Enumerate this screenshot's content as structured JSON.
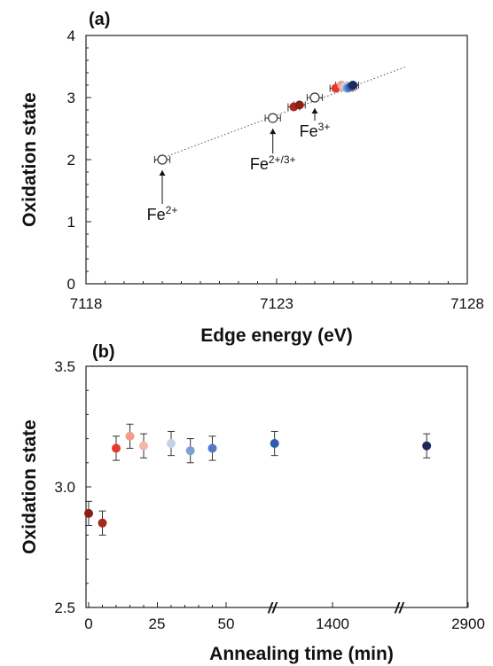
{
  "chart_data": [
    {
      "panel": "(a)",
      "type": "scatter",
      "xlabel": "Edge energy (eV)",
      "ylabel": "Oxidation state",
      "xlim": [
        7118,
        7128
      ],
      "ylim": [
        0,
        4
      ],
      "xticks": [
        "7118",
        "7123",
        "7128"
      ],
      "yticks": [
        "0",
        "1",
        "2",
        "3",
        "4"
      ],
      "grid": false,
      "fit_line": {
        "style": "dotted",
        "x": [
          7119.8,
          7126.4
        ],
        "y": [
          1.98,
          3.5
        ]
      },
      "references": [
        {
          "label_base": "Fe",
          "label_sup": "2+",
          "x": 7120.0,
          "y": 2.0,
          "xerr": 0.2
        },
        {
          "label_base": "Fe",
          "label_sup": "2+/3+",
          "x": 7122.9,
          "y": 2.67,
          "xerr": 0.2
        },
        {
          "label_base": "Fe",
          "label_sup": "3+",
          "x": 7124.0,
          "y": 3.0,
          "xerr": 0.2
        }
      ],
      "samples": [
        {
          "x": 7123.45,
          "y": 2.85,
          "color": "#a32a1e",
          "xerr": 0.15
        },
        {
          "x": 7123.6,
          "y": 2.88,
          "color": "#8c1e14",
          "xerr": 0.15
        },
        {
          "x": 7124.55,
          "y": 3.15,
          "color": "#e8382a",
          "xerr": 0.15
        },
        {
          "x": 7124.7,
          "y": 3.2,
          "color": "#f39a8a",
          "xerr": 0.15
        },
        {
          "x": 7124.75,
          "y": 3.17,
          "color": "#f2b7a8",
          "xerr": 0.15
        },
        {
          "x": 7124.8,
          "y": 3.18,
          "color": "#c4d0e8",
          "xerr": 0.15
        },
        {
          "x": 7124.85,
          "y": 3.15,
          "color": "#7f9ed4",
          "xerr": 0.15
        },
        {
          "x": 7124.9,
          "y": 3.16,
          "color": "#5577c4",
          "xerr": 0.15
        },
        {
          "x": 7124.95,
          "y": 3.18,
          "color": "#2f5cb0",
          "xerr": 0.15
        },
        {
          "x": 7125.0,
          "y": 3.2,
          "color": "#1a2a5c",
          "xerr": 0.15
        }
      ]
    },
    {
      "panel": "(b)",
      "type": "scatter",
      "xlabel": "Annealing time (min)",
      "ylabel": "Oxidation state",
      "ylim": [
        2.5,
        3.5
      ],
      "yticks": [
        "2.5",
        "3.0",
        "3.5"
      ],
      "xticks": [
        "0",
        "25",
        "50",
        "1400",
        "2900"
      ],
      "axis_breaks": [
        "//",
        "//"
      ],
      "grid": false,
      "points": [
        {
          "x": 0,
          "y": 2.89,
          "yerr": 0.05,
          "color": "#8c1e14"
        },
        {
          "x": 5,
          "y": 2.85,
          "yerr": 0.05,
          "color": "#a32a1e"
        },
        {
          "x": 10,
          "y": 3.16,
          "yerr": 0.05,
          "color": "#e8382a"
        },
        {
          "x": 15,
          "y": 3.21,
          "yerr": 0.05,
          "color": "#f39a8a"
        },
        {
          "x": 20,
          "y": 3.17,
          "yerr": 0.05,
          "color": "#f2b7a8"
        },
        {
          "x": 30,
          "y": 3.18,
          "yerr": 0.05,
          "color": "#c4d0e8"
        },
        {
          "x": 37,
          "y": 3.15,
          "yerr": 0.05,
          "color": "#7f9ed4"
        },
        {
          "x": 45,
          "y": 3.16,
          "yerr": 0.05,
          "color": "#5577c4"
        },
        {
          "x": 1260,
          "y": 3.18,
          "yerr": 0.05,
          "color": "#2f5cb0"
        },
        {
          "x": 2780,
          "y": 3.17,
          "yerr": 0.05,
          "color": "#1a2a5c"
        }
      ]
    }
  ]
}
